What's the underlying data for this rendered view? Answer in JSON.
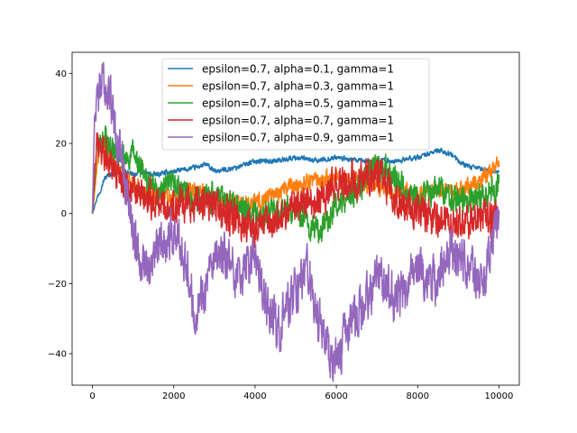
{
  "chart_data": {
    "type": "line",
    "title": "",
    "xlabel": "",
    "ylabel": "",
    "xlim": [
      -500,
      10500
    ],
    "ylim": [
      -49,
      46
    ],
    "xticks": [
      0,
      2000,
      4000,
      6000,
      8000,
      10000
    ],
    "xtick_labels": [
      "0",
      "2000",
      "4000",
      "6000",
      "8000",
      "10000"
    ],
    "yticks": [
      -40,
      -20,
      0,
      20,
      40
    ],
    "ytick_labels": [
      "−40",
      "−20",
      "0",
      "20",
      "40"
    ],
    "grid": false,
    "legend_position": "upper-center",
    "series": [
      {
        "name": "epsilon=0.7, alpha=0.1, gamma=1",
        "color": "#1f77b4",
        "noise": 0.6,
        "x": [
          0,
          100,
          200,
          300,
          400,
          600,
          800,
          1000,
          1200,
          1500,
          2000,
          2500,
          2800,
          3000,
          3500,
          4000,
          4500,
          5000,
          5500,
          6000,
          6500,
          7000,
          7500,
          8000,
          8500,
          8800,
          9000,
          9300,
          9500,
          9800,
          10000
        ],
        "y": [
          0,
          4,
          7,
          10,
          11,
          12,
          12,
          11,
          12,
          11,
          12,
          13,
          14,
          12,
          13,
          15,
          15,
          16,
          15,
          16,
          15,
          15,
          15,
          16,
          18,
          17,
          15,
          13,
          13,
          12,
          12
        ]
      },
      {
        "name": "epsilon=0.7, alpha=0.3, gamma=1",
        "color": "#ff7f0e",
        "noise": 2.2,
        "x": [
          0,
          100,
          200,
          300,
          500,
          700,
          1000,
          1300,
          1600,
          2000,
          2500,
          3000,
          3500,
          4000,
          4500,
          5000,
          5500,
          6000,
          6500,
          7000,
          7500,
          8000,
          8500,
          9000,
          9500,
          10000
        ],
        "y": [
          0,
          12,
          20,
          19,
          15,
          12,
          8,
          6,
          5,
          5,
          6,
          4,
          3,
          3,
          6,
          8,
          10,
          10,
          9,
          8,
          6,
          5,
          7,
          6,
          9,
          15
        ]
      },
      {
        "name": "epsilon=0.7, alpha=0.5, gamma=1",
        "color": "#2ca02c",
        "noise": 3.2,
        "x": [
          0,
          100,
          300,
          500,
          800,
          1000,
          1300,
          1600,
          2000,
          2500,
          3000,
          3500,
          4000,
          4500,
          5000,
          5300,
          5600,
          6000,
          6500,
          7000,
          7500,
          8000,
          8500,
          9000,
          9500,
          10000
        ],
        "y": [
          0,
          18,
          22,
          18,
          15,
          17,
          10,
          6,
          8,
          4,
          5,
          2,
          -1,
          0,
          1,
          -3,
          -5,
          2,
          6,
          14,
          10,
          3,
          8,
          3,
          5,
          8
        ]
      },
      {
        "name": "epsilon=0.7, alpha=0.7, gamma=1",
        "color": "#d62728",
        "noise": 4.2,
        "x": [
          0,
          100,
          300,
          500,
          800,
          1000,
          1300,
          1600,
          2000,
          2500,
          3000,
          3500,
          4000,
          4500,
          5000,
          5500,
          6000,
          6500,
          7000,
          7500,
          8000,
          8500,
          9000,
          9500,
          10000
        ],
        "y": [
          0,
          20,
          18,
          13,
          10,
          6,
          4,
          3,
          2,
          3,
          2,
          -2,
          -4,
          -2,
          3,
          4,
          8,
          10,
          12,
          2,
          0,
          -2,
          -3,
          0,
          -2
        ]
      },
      {
        "name": "epsilon=0.7, alpha=0.9, gamma=1",
        "color": "#9467bd",
        "noise": 5.5,
        "x": [
          0,
          50,
          150,
          250,
          400,
          500,
          600,
          800,
          1000,
          1200,
          1400,
          1600,
          2000,
          2300,
          2500,
          2800,
          3200,
          3600,
          4000,
          4300,
          4600,
          5000,
          5300,
          5500,
          5800,
          6000,
          6300,
          6600,
          7000,
          7500,
          8000,
          8400,
          8800,
          9200,
          9600,
          10000
        ],
        "y": [
          0,
          28,
          33,
          38,
          34,
          30,
          22,
          10,
          -5,
          -12,
          -15,
          -10,
          -5,
          -12,
          -28,
          -20,
          -12,
          -18,
          -12,
          -28,
          -32,
          -22,
          -15,
          -30,
          -38,
          -42,
          -32,
          -28,
          -18,
          -25,
          -15,
          -20,
          -10,
          -14,
          -22,
          0
        ]
      }
    ]
  }
}
